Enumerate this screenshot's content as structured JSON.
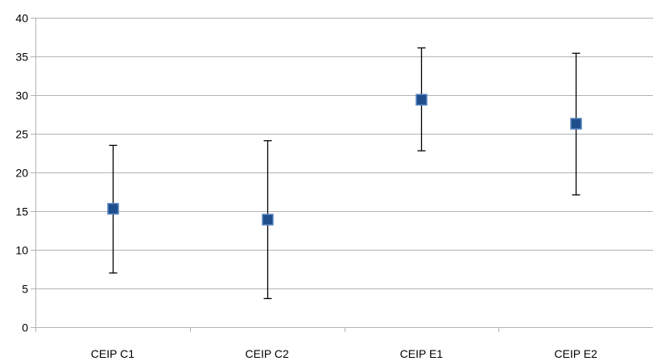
{
  "chart_data": {
    "type": "scatter",
    "title": "",
    "xlabel": "",
    "ylabel": "",
    "categories": [
      "CEIP C1",
      "CEIP C2",
      "CEIP E1",
      "CEIP E2"
    ],
    "series": [
      {
        "values": [
          15.3,
          13.9,
          29.4,
          26.3
        ],
        "error_low": [
          7.0,
          3.7,
          22.8,
          17.1
        ],
        "error_high": [
          23.5,
          24.1,
          36.1,
          35.4
        ],
        "marker": "square",
        "color": "#1f4e8c"
      }
    ],
    "ylim": [
      0,
      40
    ],
    "y_ticks": [
      0,
      5,
      10,
      15,
      20,
      25,
      30,
      35,
      40
    ],
    "grid": true,
    "legend": "none",
    "colors": {
      "grid": "#b3b3b3",
      "axis": "#b3b3b3",
      "error_bar": "#000000",
      "marker_fill": "#1f4e8c",
      "marker_border": "#5b86c2"
    }
  }
}
